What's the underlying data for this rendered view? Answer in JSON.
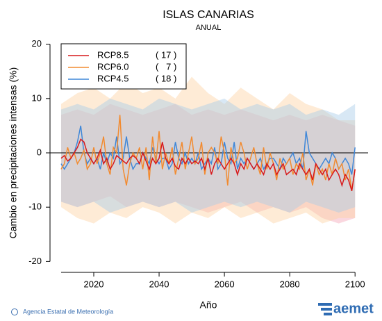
{
  "chart_data": {
    "type": "line",
    "title": "ISLAS CANARIAS",
    "subtitle": "ANUAL",
    "x_label": "Año",
    "y_label": "Cambio en precipitaciones intensas (%)",
    "xlim": [
      2006.6,
      2104
    ],
    "ylim": [
      -22,
      22
    ],
    "xticks": [
      2020,
      2040,
      2060,
      2080,
      2100
    ],
    "yticks": [
      -20,
      -10,
      0,
      10,
      20
    ],
    "x": [
      2010,
      2011,
      2012,
      2013,
      2014,
      2015,
      2016,
      2017,
      2018,
      2019,
      2020,
      2021,
      2022,
      2023,
      2024,
      2025,
      2026,
      2027,
      2028,
      2029,
      2030,
      2031,
      2032,
      2033,
      2034,
      2035,
      2036,
      2037,
      2038,
      2039,
      2040,
      2041,
      2042,
      2043,
      2044,
      2045,
      2046,
      2047,
      2048,
      2049,
      2050,
      2051,
      2052,
      2053,
      2054,
      2055,
      2056,
      2057,
      2058,
      2059,
      2060,
      2061,
      2062,
      2063,
      2064,
      2065,
      2066,
      2067,
      2068,
      2069,
      2070,
      2071,
      2072,
      2073,
      2074,
      2075,
      2076,
      2077,
      2078,
      2079,
      2080,
      2081,
      2082,
      2083,
      2084,
      2085,
      2086,
      2087,
      2088,
      2089,
      2090,
      2091,
      2092,
      2093,
      2094,
      2095,
      2096,
      2097,
      2098,
      2099,
      2100
    ],
    "band_x": [
      2010,
      2015,
      2020,
      2025,
      2030,
      2035,
      2040,
      2045,
      2050,
      2055,
      2060,
      2065,
      2070,
      2075,
      2080,
      2085,
      2090,
      2095,
      2100
    ],
    "series": [
      {
        "name": "RCP8.5",
        "models": "( 17 )",
        "color": "#d7191c",
        "band_color": "#f4a6b8",
        "values": [
          -1,
          -0.5,
          -1.5,
          -1,
          0,
          1,
          2.5,
          2,
          0,
          -1,
          -2,
          -1,
          0.5,
          -2,
          -1,
          -3,
          -2,
          -0.5,
          -1,
          -1.5,
          -2,
          -1,
          -0.5,
          -1,
          -2,
          0,
          -1.5,
          -3,
          -1,
          -2,
          -1,
          2,
          -1,
          -2,
          -1,
          -2.5,
          -3,
          -1,
          -2,
          -1,
          -2,
          -1.5,
          -2,
          -1,
          -3,
          -1,
          -4,
          -2,
          -1,
          -2,
          -3,
          -2,
          -1,
          -2,
          -4,
          -2,
          -3,
          -1,
          -2,
          -3,
          -2,
          -3,
          -4,
          -2,
          -3,
          -2,
          -4,
          -3,
          -2,
          -4,
          -3.5,
          -3,
          -4,
          -2,
          -3,
          -4,
          -3,
          -5,
          -2,
          -3,
          -4,
          -3,
          -5,
          -4,
          -3,
          -4,
          -6,
          -4,
          -5,
          -7,
          -3
        ],
        "upper": [
          7,
          8,
          7,
          9,
          8,
          7,
          8,
          9,
          7,
          8,
          7,
          8,
          7,
          6,
          7,
          6,
          7,
          6,
          5
        ],
        "lower": [
          -9,
          -10,
          -9,
          -8,
          -10,
          -9,
          -10,
          -9,
          -10,
          -11,
          -10,
          -9,
          -11,
          -10,
          -11,
          -10,
          -12,
          -13,
          -12
        ]
      },
      {
        "name": "RCP6.0",
        "models": "(   7 )",
        "color": "#f28b30",
        "band_color": "#fdd3a4",
        "values": [
          -3,
          -2,
          1,
          -1,
          0,
          -2,
          -1,
          0.5,
          -3,
          -2,
          1,
          -2,
          0,
          3,
          -2,
          -4,
          1,
          0,
          7,
          -3,
          -6,
          -2,
          0,
          -1,
          1,
          -3,
          1,
          -5,
          3,
          -2,
          4,
          -3,
          0,
          -2,
          1,
          -4,
          -1,
          2,
          -3,
          0,
          3,
          -2,
          -1,
          2,
          -4,
          0,
          1,
          0,
          -2,
          3,
          0,
          -6,
          1,
          -2,
          -1,
          2,
          0,
          -3,
          -1,
          1,
          -2,
          -4,
          1,
          -3,
          0,
          -2,
          -5,
          -1,
          -3,
          -2,
          -1,
          -4,
          -2,
          -3,
          0,
          -5,
          -3,
          -6,
          -2,
          -4,
          -3,
          -5,
          -2,
          -4,
          -1,
          -3,
          -2,
          -5,
          -3,
          -7,
          -3
        ],
        "upper": [
          9,
          11,
          12,
          10,
          13,
          11,
          12,
          10,
          14,
          11,
          9,
          12,
          10,
          8,
          11,
          9,
          8,
          6,
          6
        ],
        "lower": [
          -10,
          -12,
          -13,
          -11,
          -12,
          -10,
          -11,
          -13,
          -11,
          -12,
          -10,
          -12,
          -11,
          -13,
          -12,
          -11,
          -13,
          -12,
          -12
        ]
      },
      {
        "name": "RCP4.5",
        "models": "( 18 )",
        "color": "#3f87d8",
        "band_color": "#a9cde9",
        "values": [
          -2,
          -3,
          -2,
          -1,
          0,
          2,
          5,
          0,
          -2,
          -1,
          -2,
          -1,
          -3,
          0,
          -2,
          0,
          -1,
          3,
          -2,
          -1,
          3,
          -1,
          -3,
          -2,
          -2,
          0,
          -1,
          -2,
          1,
          -1,
          -2,
          -1,
          -1,
          -3,
          -2,
          2,
          -1,
          -2,
          0,
          -2,
          -1,
          -2,
          0,
          -3,
          -2,
          -1,
          -2,
          1,
          -3,
          -2,
          2,
          -1,
          -2,
          2,
          -3,
          -1,
          -2,
          -1,
          -2,
          -3,
          -2,
          -1,
          -3,
          -2,
          -1,
          -1,
          -2,
          -3,
          -1,
          -2,
          -1,
          0,
          -2,
          -1,
          -3,
          4,
          0,
          -1,
          -2,
          -3,
          -2,
          -1,
          -2,
          0,
          -1,
          -3,
          -2,
          -1,
          -2,
          -4,
          1
        ],
        "upper": [
          8,
          9,
          8,
          10,
          9,
          8,
          10,
          9,
          8,
          9,
          10,
          8,
          9,
          8,
          9,
          7,
          8,
          7,
          9
        ],
        "lower": [
          -9,
          -10,
          -9,
          -11,
          -10,
          -9,
          -10,
          -9,
          -11,
          -10,
          -9,
          -10,
          -9,
          -10,
          -11,
          -9,
          -10,
          -11,
          -10
        ]
      }
    ]
  },
  "footer": {
    "agency": "Agencia Estatal de Meteorología",
    "logo": "aemet"
  }
}
